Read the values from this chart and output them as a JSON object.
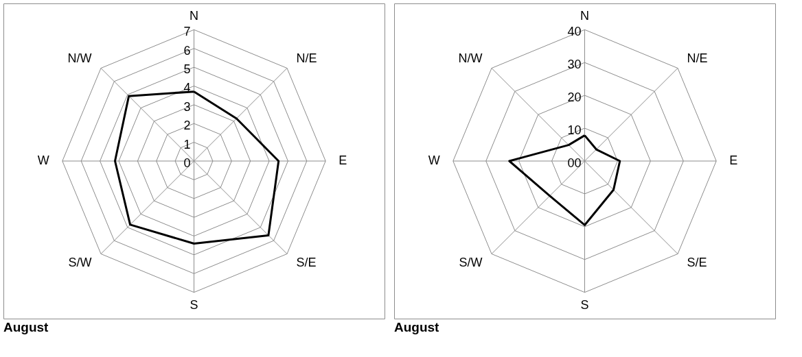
{
  "chart_data": [
    {
      "type": "radar",
      "title": "August",
      "categories": [
        "N",
        "N/E",
        "E",
        "S/E",
        "S",
        "S/W",
        "W",
        "N/W"
      ],
      "ylim": [
        0,
        7
      ],
      "yticks": [
        0,
        1,
        2,
        3,
        4,
        5,
        6,
        7
      ],
      "grid": true,
      "series": [
        {
          "color": "#000000",
          "values": [
            3.7,
            3.2,
            4.5,
            5.6,
            4.4,
            4.8,
            4.2,
            4.9
          ]
        }
      ]
    },
    {
      "type": "radar",
      "title": "August",
      "categories": [
        "N",
        "N/E",
        "E",
        "S/E",
        "S",
        "S/W",
        "W",
        "N/W"
      ],
      "ylim": [
        0,
        40
      ],
      "yticks": [
        {
          "value": 0,
          "label": "00"
        },
        10,
        20,
        30,
        40
      ],
      "grid": true,
      "series": [
        {
          "color": "#000000",
          "values": [
            7.8,
            5.0,
            10.7,
            12.4,
            19.5,
            15.0,
            22.9,
            6.9
          ]
        }
      ]
    }
  ]
}
